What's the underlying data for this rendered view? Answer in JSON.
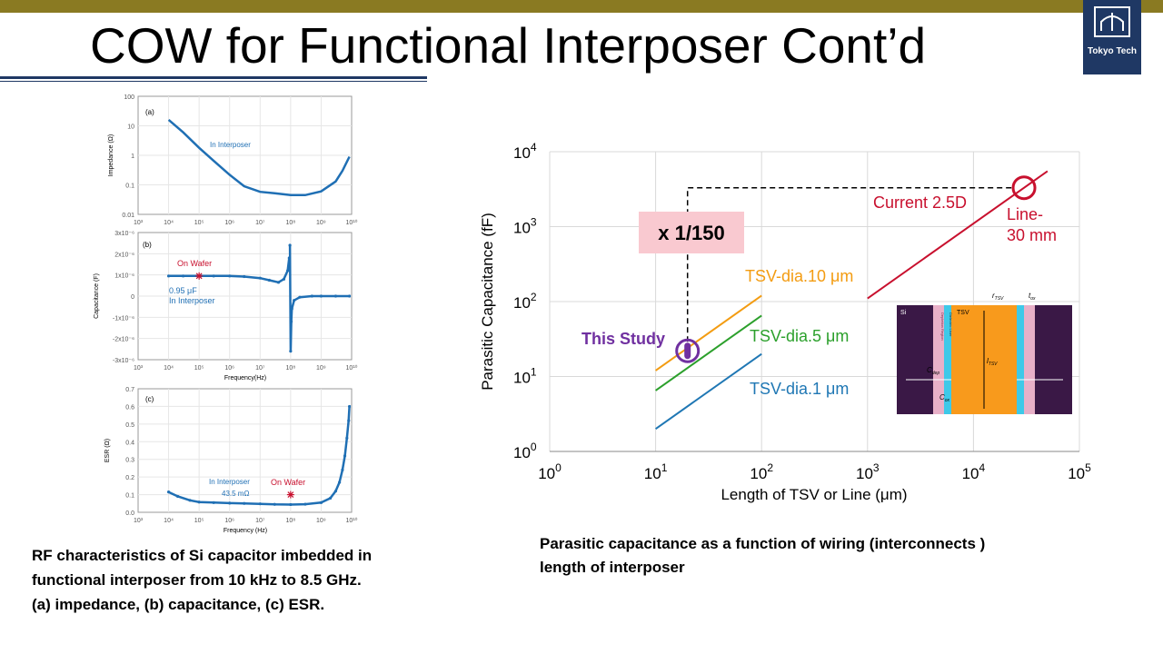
{
  "slide": {
    "title": "COW for Functional Interposer Cont’d",
    "logo_text": "Tokyo Tech",
    "left_caption": [
      "RF characteristics of Si capacitor imbedded in",
      "functional interposer from 10 kHz to 8.5 GHz.",
      "(a) impedance, (b) capacitance, (c) ESR."
    ],
    "right_caption": [
      "Parasitic capacitance as a function of wiring  (interconnects )",
      "length of interposer"
    ]
  },
  "colors": {
    "topbar": "#8a7a22",
    "navy": "#1f3864",
    "blue_series": "#1f6fb4",
    "red": "#c8102e",
    "orange": "#f39c12",
    "green": "#2ca02c",
    "blue": "#1f77b4",
    "purple": "#7030a0",
    "pink_box": "#f9c9d0"
  },
  "chart_data": [
    {
      "type": "line",
      "panel": "(a)",
      "ylabel": "Impedance (Ω)",
      "xscale": "log",
      "yscale": "log",
      "xlim": [
        1000,
        10000000000
      ],
      "ylim": [
        0.01,
        100
      ],
      "x_tick_labels": [
        "10³",
        "10⁴",
        "10⁵",
        "10⁶",
        "10⁷",
        "10⁸",
        "10⁹",
        "10¹⁰"
      ],
      "y_tick_labels": [
        "0.01",
        "0.1",
        "1",
        "10",
        "100"
      ],
      "annotation": "In Interposer",
      "series": [
        {
          "x": [
            10000,
            30000,
            100000,
            300000,
            1000000,
            3000000,
            10000000,
            30000000,
            100000000,
            300000000,
            1000000000,
            3000000000,
            5000000000,
            8500000000
          ],
          "y": [
            16,
            6,
            1.8,
            0.65,
            0.22,
            0.09,
            0.058,
            0.052,
            0.045,
            0.045,
            0.06,
            0.13,
            0.3,
            0.9
          ]
        }
      ]
    },
    {
      "type": "scatter",
      "panel": "(b)",
      "ylabel": "Capacitance (F)",
      "xlabel": "Frequency(Hz)",
      "xscale": "log",
      "xlim": [
        1000,
        10000000000
      ],
      "ylim": [
        -3e-06,
        3e-06
      ],
      "x_tick_labels": [
        "10³",
        "10⁴",
        "10⁵",
        "10⁶",
        "10⁷",
        "10⁸",
        "10⁹",
        "10¹⁰"
      ],
      "y_tick_labels": [
        "-3x10⁻⁶",
        "-2x10⁻⁶",
        "-1x10⁻⁶",
        "0",
        "1x10⁻⁶",
        "2x10⁻⁶",
        "3x10⁻⁶"
      ],
      "annotations": [
        "On Wafer",
        "0.95 μF",
        "In Interposer"
      ],
      "on_wafer_marker": {
        "x": 100000,
        "y": 9.5e-07
      },
      "series": [
        {
          "x": [
            10000,
            30000,
            100000,
            300000,
            1000000,
            3000000,
            10000000,
            20000000,
            40000000,
            60000000,
            80000000,
            90000000,
            95000000,
            100000000,
            105000000,
            110000000,
            130000000,
            200000000,
            500000000,
            1000000000,
            3000000000,
            8500000000
          ],
          "y": [
            9.5e-07,
            9.5e-07,
            9.5e-07,
            9.5e-07,
            9.5e-07,
            9.2e-07,
            8.5e-07,
            7.5e-07,
            6.5e-07,
            8e-07,
            1.2e-06,
            1.8e-06,
            2.4e-06,
            -2.6e-06,
            -1.2e-06,
            -6e-07,
            -2e-07,
            -5e-08,
            0,
            0,
            0,
            0
          ]
        }
      ]
    },
    {
      "type": "scatter",
      "panel": "(c)",
      "ylabel": "ESR (Ω)",
      "xlabel": "Frequency (Hz)",
      "xscale": "log",
      "xlim": [
        1000,
        10000000000
      ],
      "ylim": [
        0,
        0.7
      ],
      "x_tick_labels": [
        "10³",
        "10⁴",
        "10⁵",
        "10⁶",
        "10⁷",
        "10⁸",
        "10⁹",
        "10¹⁰"
      ],
      "y_tick_labels": [
        "0.0",
        "0.1",
        "0.2",
        "0.3",
        "0.4",
        "0.5",
        "0.6",
        "0.7"
      ],
      "annotations": [
        "In Interposer",
        "43.5 mΩ",
        "On Wafer"
      ],
      "on_wafer_marker": {
        "x": 100000000,
        "y": 0.1
      },
      "series": [
        {
          "x": [
            10000,
            20000,
            50000,
            100000,
            300000,
            1000000,
            3000000,
            10000000,
            30000000,
            100000000,
            300000000,
            1000000000,
            2000000000,
            3000000000,
            4000000000,
            5000000000,
            6000000000,
            7000000000,
            8000000000,
            8500000000
          ],
          "y": [
            0.115,
            0.09,
            0.068,
            0.058,
            0.055,
            0.052,
            0.05,
            0.048,
            0.045,
            0.044,
            0.046,
            0.055,
            0.08,
            0.12,
            0.17,
            0.24,
            0.32,
            0.42,
            0.52,
            0.6
          ]
        }
      ]
    },
    {
      "type": "line",
      "xlabel": "Length of TSV or Line (μm)",
      "ylabel": "Parasitic Capacitance (fF)",
      "xscale": "log",
      "yscale": "log",
      "xlim": [
        1,
        100000
      ],
      "ylim": [
        1,
        10000
      ],
      "grid": true,
      "x_tick_labels": [
        [
          "10",
          "0"
        ],
        [
          "10",
          "1"
        ],
        [
          "10",
          "2"
        ],
        [
          "10",
          "3"
        ],
        [
          "10",
          "4"
        ],
        [
          "10",
          "5"
        ]
      ],
      "y_tick_labels": [
        [
          "10",
          "0"
        ],
        [
          "10",
          "1"
        ],
        [
          "10",
          "2"
        ],
        [
          "10",
          "3"
        ],
        [
          "10",
          "4"
        ]
      ],
      "series": [
        {
          "name": "Current 2.5D",
          "x": [
            1000,
            50000
          ],
          "y": [
            110,
            5500
          ]
        },
        {
          "name": "TSV-dia.10 μm",
          "x": [
            10,
            100
          ],
          "y": [
            12,
            120
          ]
        },
        {
          "name": "TSV-dia.5 μm",
          "x": [
            10,
            100
          ],
          "y": [
            6.5,
            65
          ]
        },
        {
          "name": "TSV-dia.1 μm",
          "x": [
            10,
            100
          ],
          "y": [
            2,
            20
          ]
        }
      ],
      "annotations": {
        "ratio": "x 1/150",
        "this_study": "This Study",
        "this_study_point": {
          "x": 20,
          "y": 22
        },
        "line_label": [
          "Line-",
          "30 mm"
        ],
        "line_point": {
          "x": 30000,
          "y": 3300
        }
      },
      "inset": {
        "labels": [
          "Si",
          "TSV",
          "r",
          "TSV",
          "t",
          "ox",
          "l",
          "TSV",
          "C",
          "dep",
          "C",
          "ox",
          "Depletion Region",
          "Dielectric Liner"
        ]
      }
    }
  ]
}
